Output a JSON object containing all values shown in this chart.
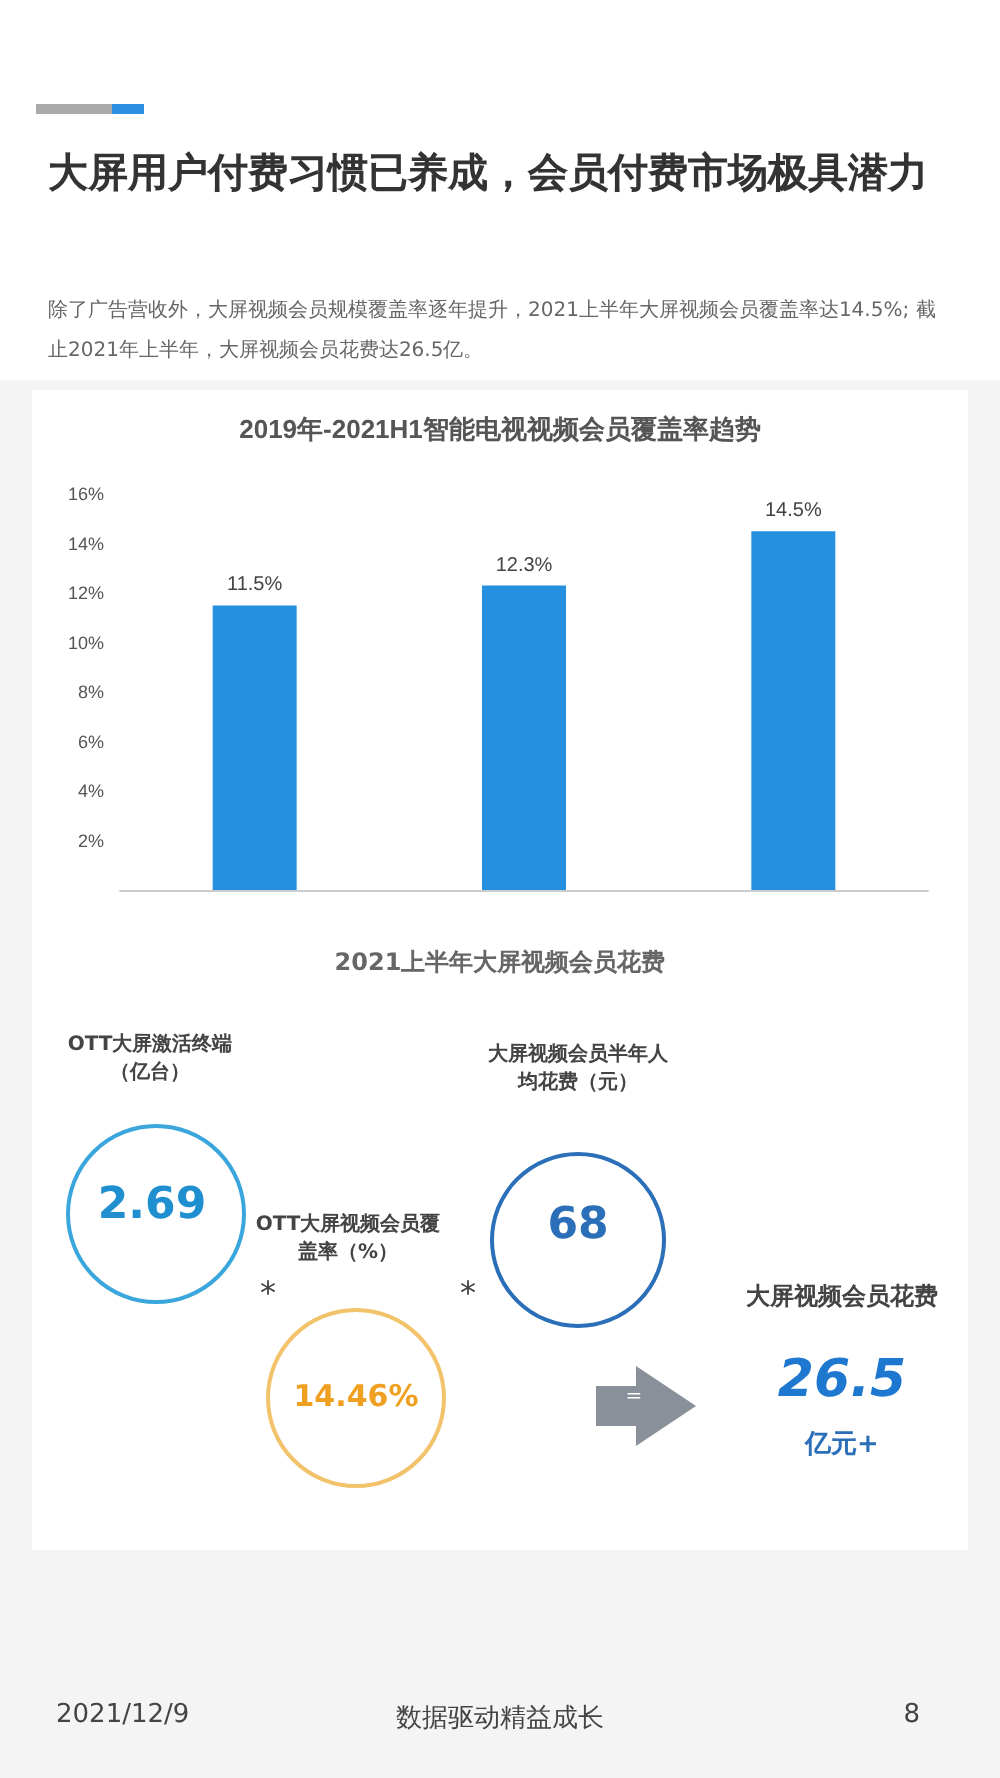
{
  "chart_data": [
    {
      "type": "other",
      "title": "大屏用户付费习惯已养成，会员付费市场极具潜力",
      "subtitle": "除了广告营收外，大屏视频会员规模覆盖率逐年提升，2021上半年大屏视频会员覆盖率达14.5%; 截止2021年上半年，大屏视频会员花费达26.5亿。"
    },
    {
      "type": "bar",
      "title": "2019年-2021H1智能电视视频会员覆盖率趋势",
      "categories": [
        null,
        null,
        null
      ],
      "values": [
        11.5,
        12.3,
        14.5
      ],
      "color": "#2590e0",
      "value_labels": [
        "11.5%",
        "12.3%",
        "14.5%"
      ],
      "ylim": [
        0,
        16
      ],
      "yticks": [
        {
          "value": 2,
          "label": "2%"
        },
        {
          "value": 4,
          "label": "4%"
        },
        {
          "value": 6,
          "label": "6%"
        },
        {
          "value": 8,
          "label": "8%"
        },
        {
          "value": 10,
          "label": "10%"
        },
        {
          "value": 12,
          "label": "12%"
        },
        {
          "value": 14,
          "label": "14%"
        },
        {
          "value": 16,
          "label": "16%"
        }
      ],
      "grid": false
    },
    {
      "type": "other",
      "title": "2021上半年大屏视频会员花费",
      "annotations": [
        "OTT大屏激活终端（亿台）",
        "2.69",
        "*",
        "OTT大屏视频会员覆盖率（%）",
        "14.46%",
        "*",
        "大屏视频会员半年人均花费（元）",
        "68",
        "=",
        "大屏视频会员花费",
        "26.5",
        "亿元+"
      ]
    },
    {
      "type": "other",
      "annotations": [
        "2021/12/9",
        "数据驱动精益成长",
        "8"
      ]
    }
  ]
}
